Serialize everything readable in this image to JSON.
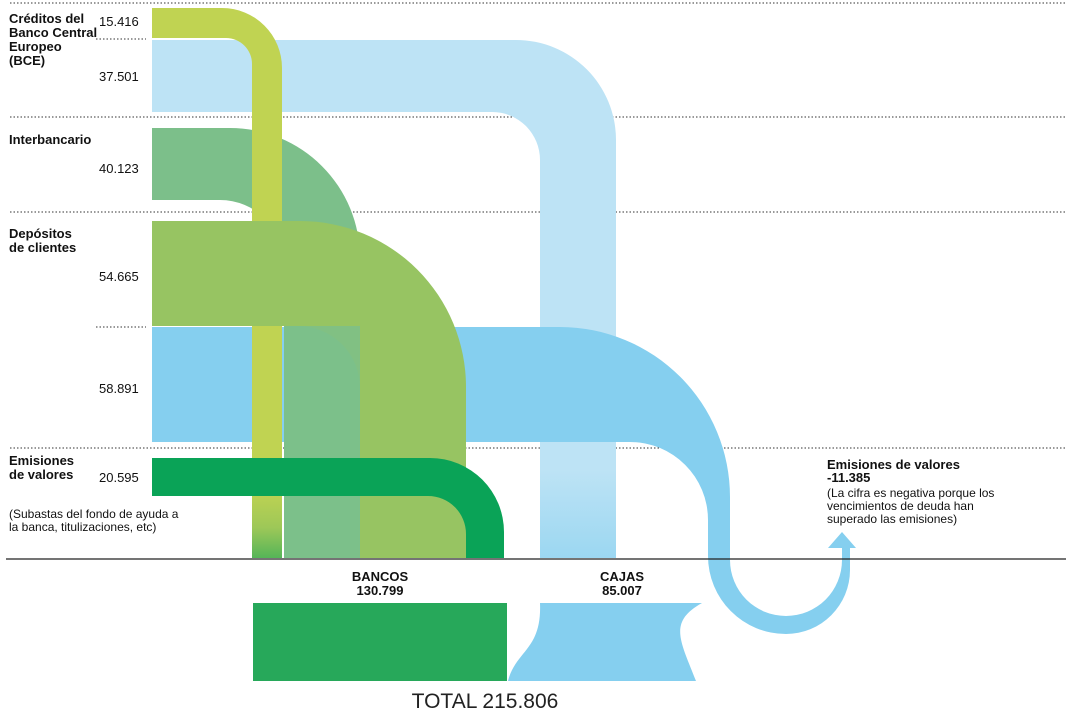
{
  "sources": {
    "bce": {
      "label": "Créditos del Banco Central Europeo (BCE)",
      "bancos_value": "15.416",
      "cajas_value": "37.501"
    },
    "interbancario": {
      "label": "Interbancario",
      "value": "40.123"
    },
    "depositos": {
      "label": "Depósitos de clientes",
      "bancos_value": "54.665",
      "cajas_value": "58.891"
    },
    "emisiones": {
      "label": "Emisiones de valores",
      "value": "20.595",
      "note": "(Subastas del fondo de ayuda a la banca, titulizaciones, etc)"
    }
  },
  "right_note": {
    "title": "Emisiones de valores",
    "value": "-11.385",
    "note": "(La cifra es negativa porque los vencimientos de deuda han superado las emisiones)"
  },
  "totals": {
    "bancos_label": "BANCOS",
    "bancos_value": "130.799",
    "cajas_label": "CAJAS",
    "cajas_value": "85.007",
    "total": "TOTAL 215.806"
  },
  "colors": {
    "bce_bancos": "#c0d352",
    "bce_cajas": "#bde3f5",
    "interbancario": "#7cbf8a",
    "depositos_bancos": "#97c462",
    "depositos_cajas": "#85cfef",
    "emisiones": "#0aa357",
    "bancos_box": "#27a85a",
    "cajas_box": "#85cfef"
  }
}
